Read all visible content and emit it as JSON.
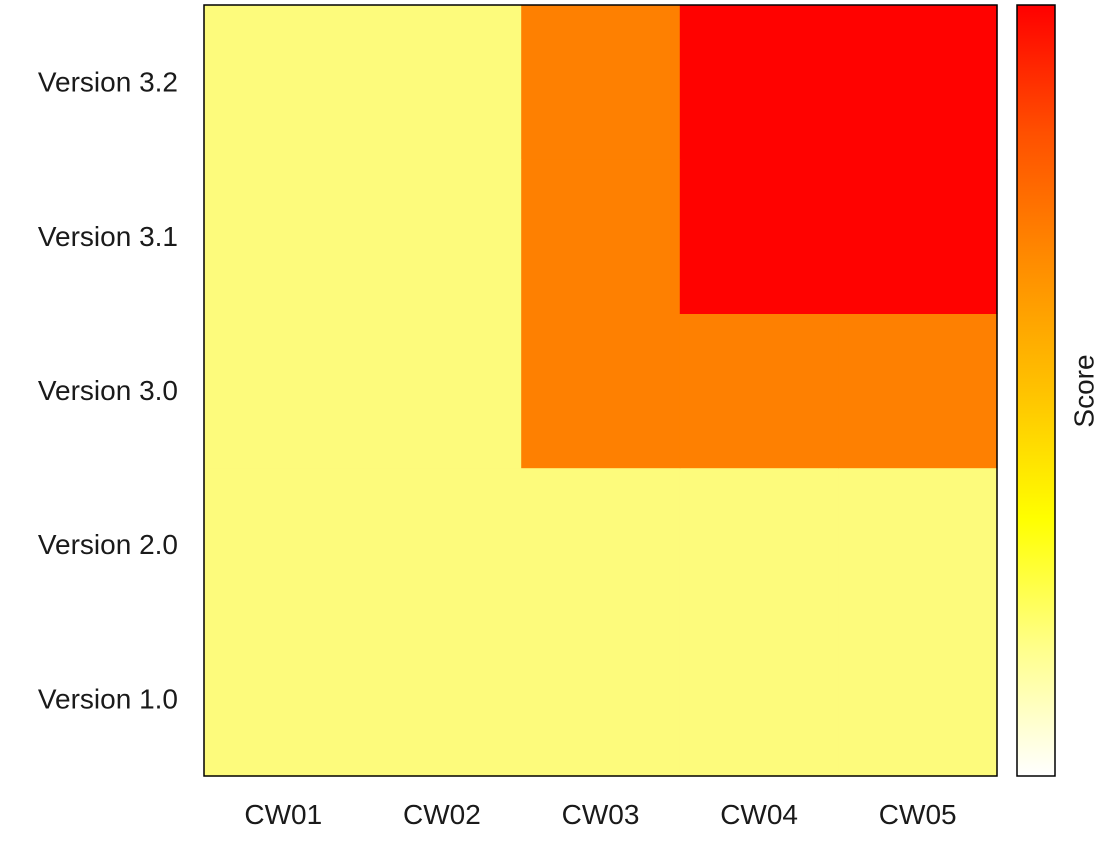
{
  "chart_data": {
    "type": "heatmap",
    "x_categories": [
      "CW01",
      "CW02",
      "CW03",
      "CW04",
      "CW05"
    ],
    "y_categories": [
      "Version 1.0",
      "Version 2.0",
      "Version 3.0",
      "Version 3.1",
      "Version 3.2"
    ],
    "values": [
      [
        1,
        1,
        1,
        1,
        1
      ],
      [
        1,
        1,
        1,
        1,
        1
      ],
      [
        1,
        1,
        2,
        2,
        2
      ],
      [
        1,
        1,
        2,
        3,
        3
      ],
      [
        1,
        1,
        2,
        3,
        3
      ]
    ],
    "value_colors": {
      "1": "#fdfb7c",
      "2": "#fe8001",
      "3": "#ff0200"
    },
    "colorbar": {
      "label": "Score",
      "colors": [
        "#ffffff",
        "#ffff8a",
        "#ffff00",
        "#ffc200",
        "#ff8c00",
        "#ff5000",
        "#ff0000"
      ]
    },
    "xlabel": "",
    "ylabel": "",
    "title": ""
  }
}
